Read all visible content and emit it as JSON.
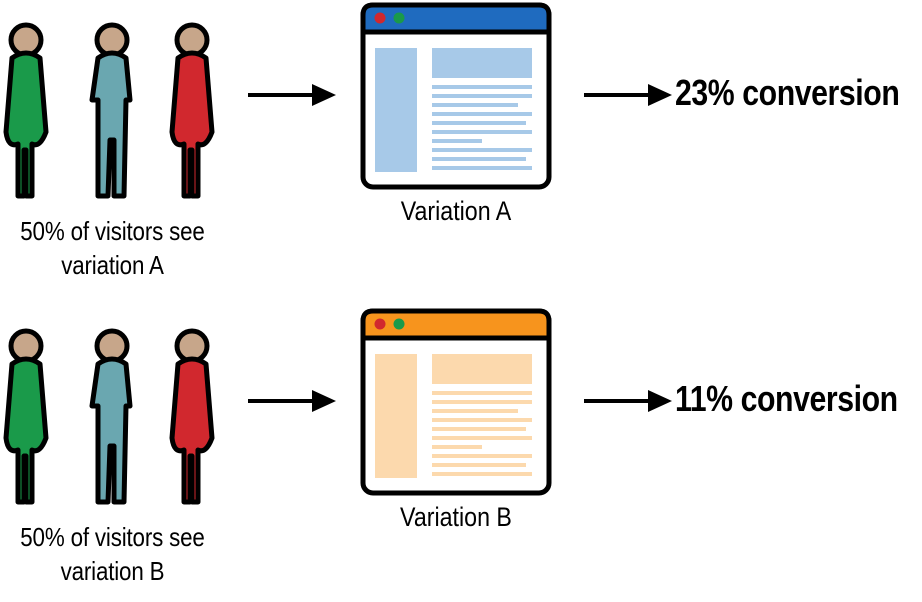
{
  "variations": [
    {
      "caption_line1": "50% of visitors see",
      "caption_line2": "variation A",
      "label": "Variation A",
      "result": "23% conversion",
      "accent": "#1f6bbf",
      "content_color": "#a7c9e8"
    },
    {
      "caption_line1": "50% of visitors see",
      "caption_line2": "variation B",
      "label": "Variation B",
      "result": "11% conversion",
      "accent": "#f7941d",
      "content_color": "#fcd9ad"
    }
  ],
  "people_colors": [
    "#1a9a4a",
    "#6aa7b0",
    "#d1282e"
  ],
  "window_dots": [
    "#d1282e",
    "#1a9a4a"
  ]
}
